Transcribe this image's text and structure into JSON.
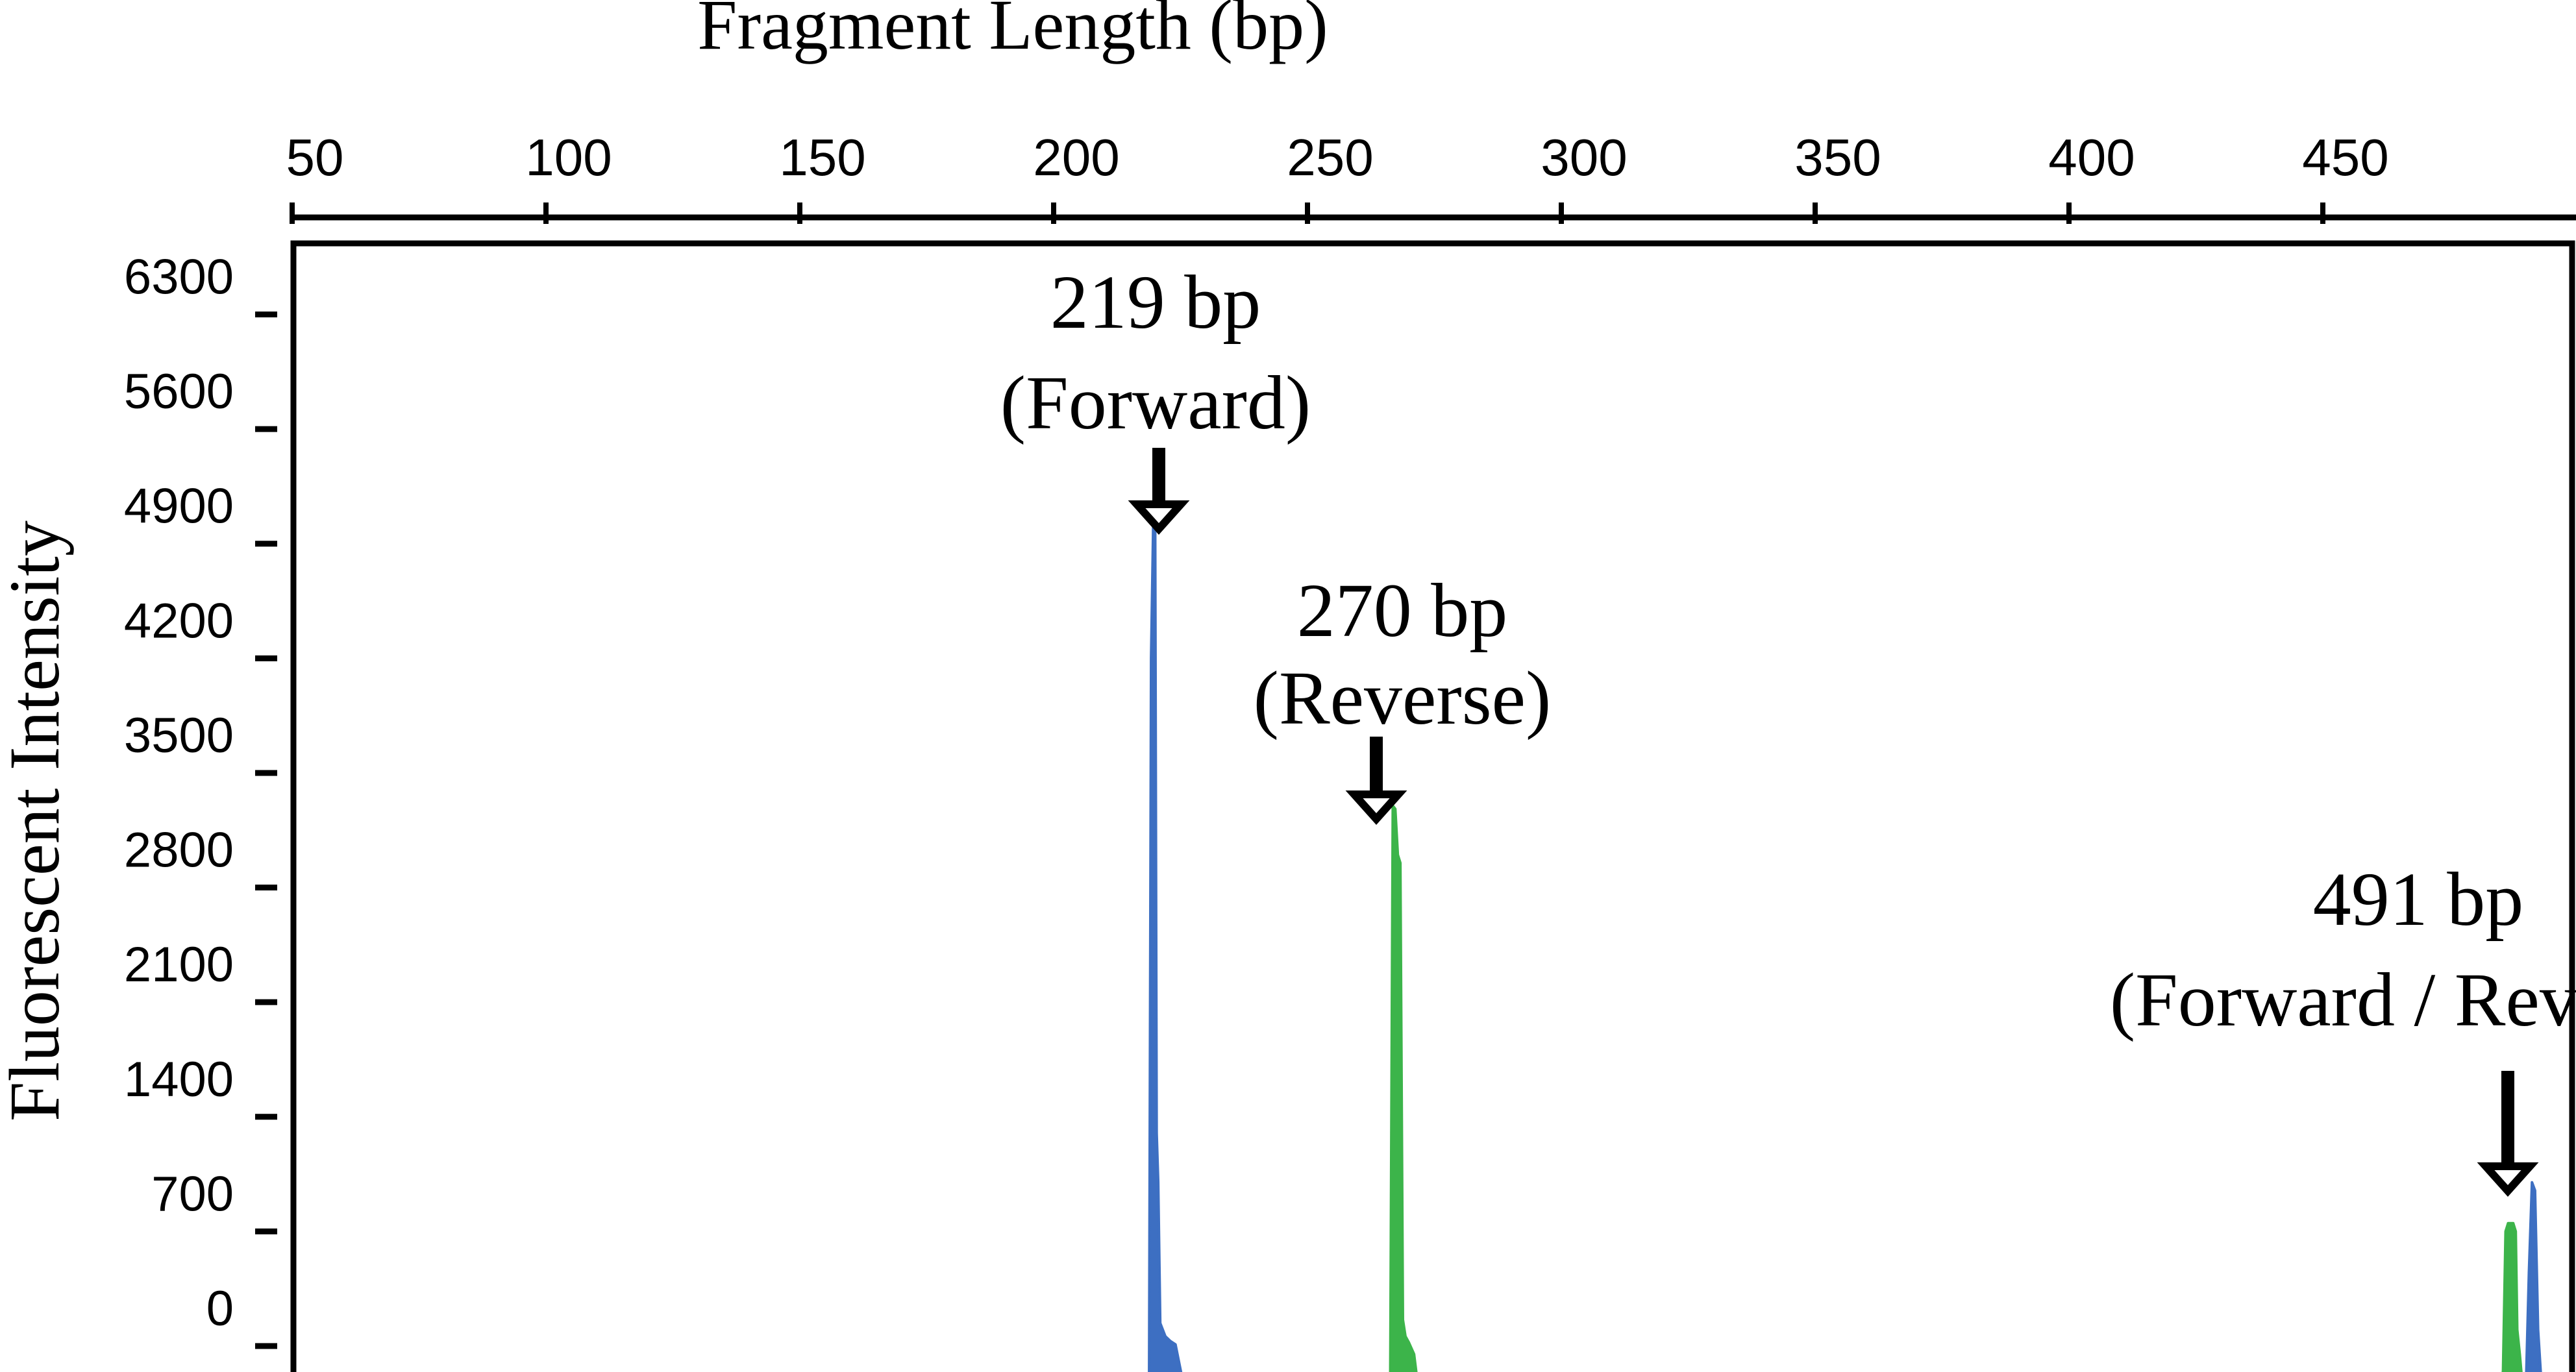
{
  "chart_data": {
    "type": "line",
    "xlabel": "Fragment Length (bp)",
    "ylabel": "Fluorescent Intensity",
    "xlim": [
      50,
      500
    ],
    "ylim": [
      -300,
      6800
    ],
    "x_ticks": [
      50,
      100,
      150,
      200,
      250,
      300,
      350,
      400,
      450
    ],
    "y_ticks": [
      0,
      700,
      1400,
      2100,
      2800,
      3500,
      4200,
      4900,
      5600,
      6300
    ],
    "colors": {
      "blue": "#3d6fc2",
      "green": "#3cb44a"
    },
    "series": [
      {
        "color": "blue",
        "x": [
          50,
          218.5,
          218.8,
          219.2,
          219.6,
          220.0,
          220.3,
          220.6,
          221.0,
          222.0,
          223.0,
          224.0,
          226.0,
          486.0,
          487.0,
          487.5,
          488.0,
          489.0,
          490.0,
          490.6,
          491.2,
          491.8,
          492.4,
          493.0,
          494.0,
          500
        ],
        "y": [
          -300,
          -300,
          -250,
          4200,
          5000,
          5050,
          1300,
          1000,
          140,
          60,
          30,
          10,
          -300,
          -300,
          -220,
          -200,
          -300,
          -300,
          -260,
          450,
          1000,
          950,
          100,
          -200,
          -280,
          -300
        ]
      },
      {
        "color": "green",
        "x": [
          50,
          266.0,
          266.3,
          266.8,
          267.3,
          267.8,
          268.3,
          268.8,
          269.3,
          270.0,
          271.0,
          272.0,
          485.0,
          485.5,
          486.0,
          486.5,
          487.5,
          488.0,
          488.3,
          488.8,
          489.5,
          500
        ],
        "y": [
          -300,
          -300,
          -200,
          3300,
          3280,
          3000,
          2950,
          160,
          60,
          20,
          -50,
          -300,
          -300,
          -150,
          700,
          750,
          750,
          700,
          100,
          -50,
          -300,
          -300
        ]
      }
    ],
    "annotations": [
      {
        "x": 219,
        "line1": "219 bp",
        "line2": "(Forward)"
      },
      {
        "x": 267,
        "line1": "270 bp",
        "line2": "(Reverse)"
      },
      {
        "x": 488,
        "line1": "491 bp",
        "line2": "(Forward / Reverse)"
      }
    ]
  }
}
